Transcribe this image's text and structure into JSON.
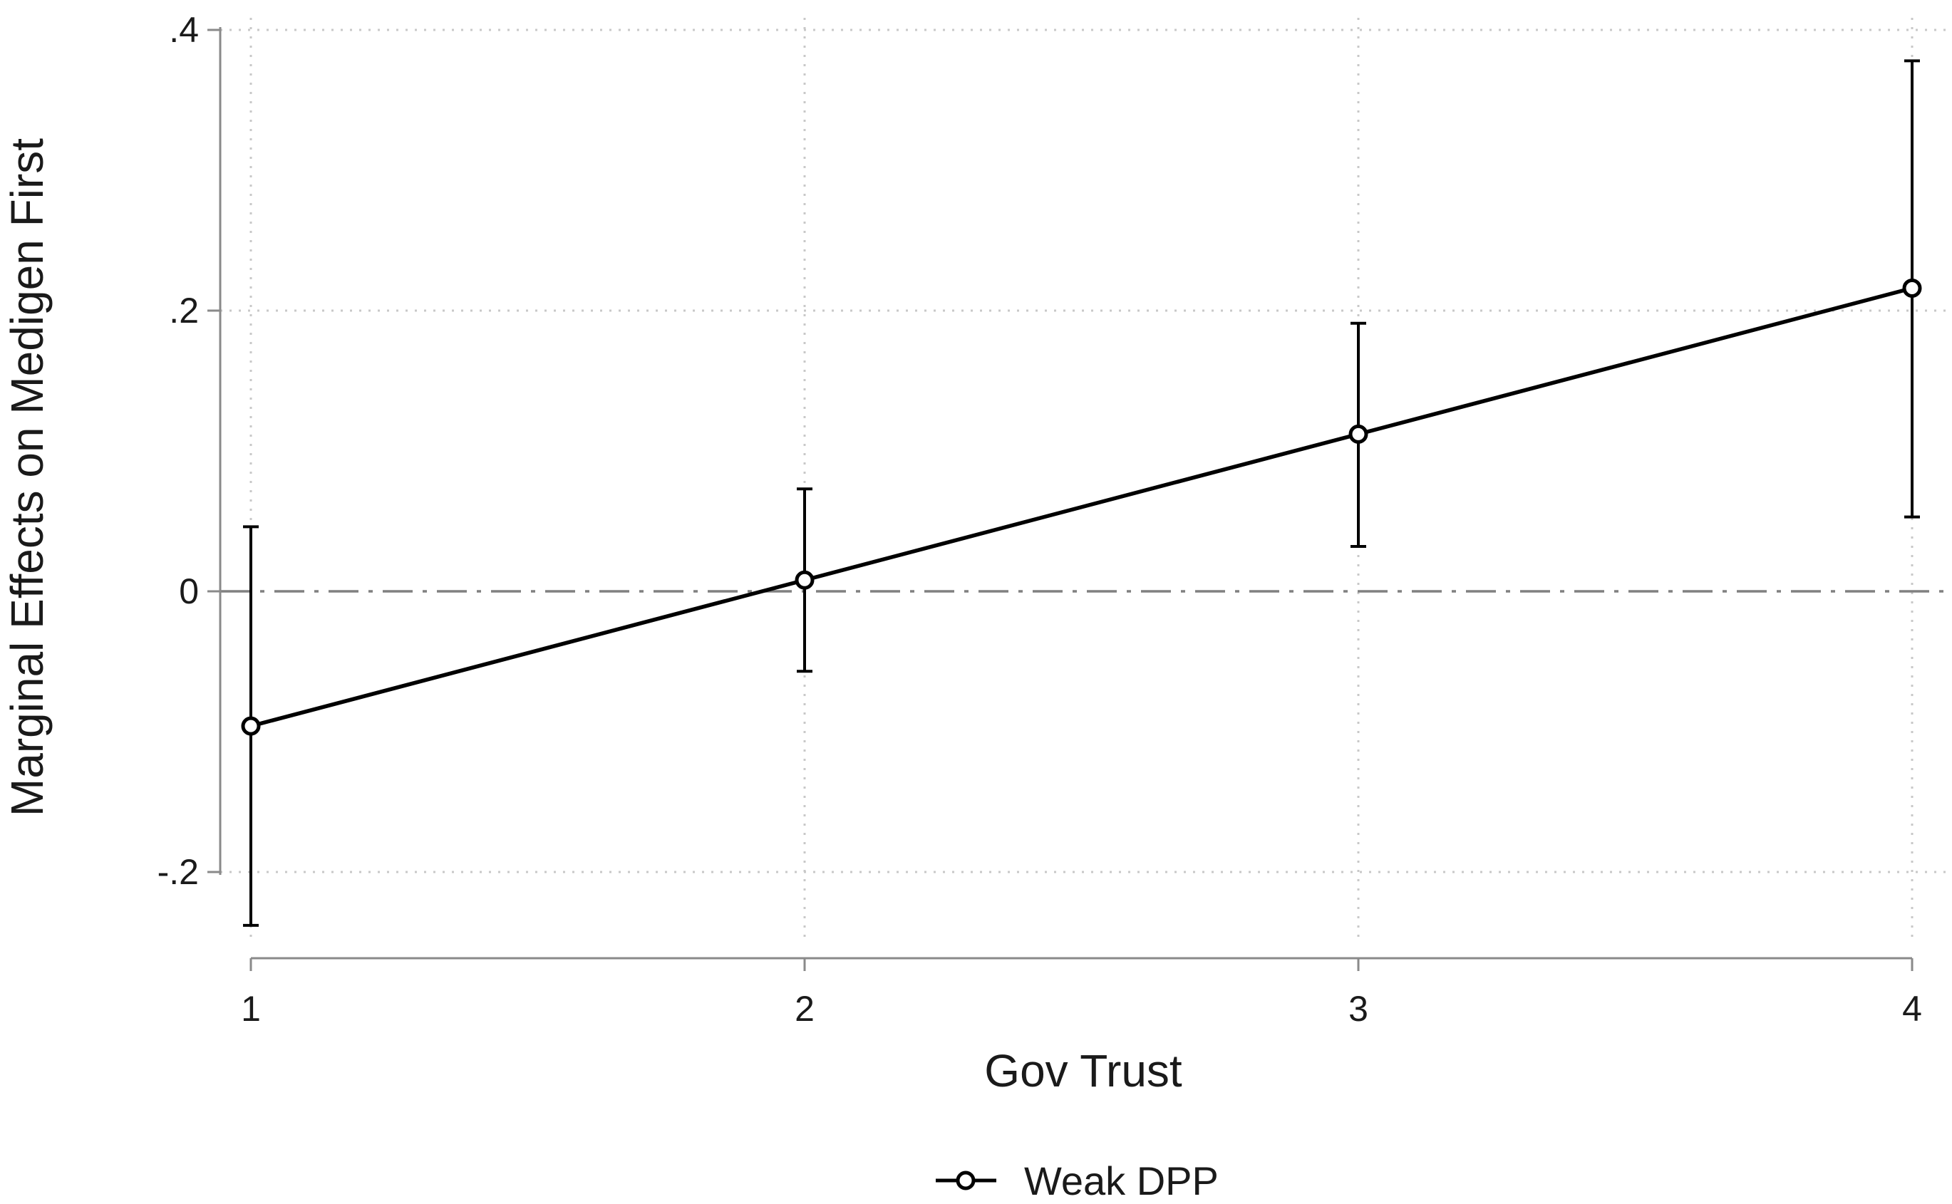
{
  "chart_data": {
    "type": "line",
    "title": "",
    "xlabel": "Gov Trust",
    "ylabel": "Marginal Effects on Medigen First",
    "x": [
      1,
      2,
      3,
      4
    ],
    "x_tick_labels": [
      "1",
      "2",
      "3",
      "4"
    ],
    "xlim": [
      0.95,
      4.05
    ],
    "y_ticks": [
      -0.2,
      0,
      0.2,
      0.4
    ],
    "y_tick_labels": [
      "-.2",
      "0",
      ".2",
      ".4"
    ],
    "ylim": [
      -0.24,
      0.4
    ],
    "grid": true,
    "reference_line_y": 0,
    "legend_position": "bottom-center",
    "series": [
      {
        "name": "Weak DPP",
        "color": "#000000",
        "values": [
          -0.096,
          0.008,
          0.112,
          0.216
        ],
        "ci_lower": [
          -0.238,
          -0.057,
          0.032,
          0.053
        ],
        "ci_upper": [
          0.046,
          0.073,
          0.191,
          0.378
        ]
      }
    ]
  }
}
